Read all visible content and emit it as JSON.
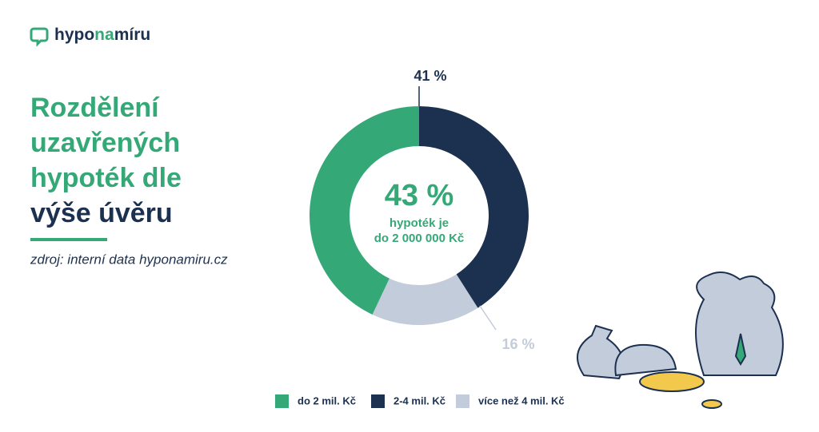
{
  "brand": {
    "parts": [
      "hypo",
      "na",
      "míru"
    ]
  },
  "chart_data": {
    "type": "donut",
    "title_lines": [
      "Rozdělení",
      "uzavřených",
      "hypoték dle",
      "výše úvěru"
    ],
    "source": "zdroj: interní data hyponamiru.cz",
    "center_lines": [
      "hypoték je",
      "do 2 000 000 Kč"
    ],
    "categories": [
      "do 2 mil. Kč",
      "2-4 mil. Kč",
      "více než 4 mil. Kč"
    ],
    "values": [
      43,
      41,
      16
    ],
    "value_labels": [
      "43 %",
      "41 %",
      "16 %"
    ],
    "colors": [
      "#35a877",
      "#1c3050",
      "#c3ccda"
    ]
  }
}
